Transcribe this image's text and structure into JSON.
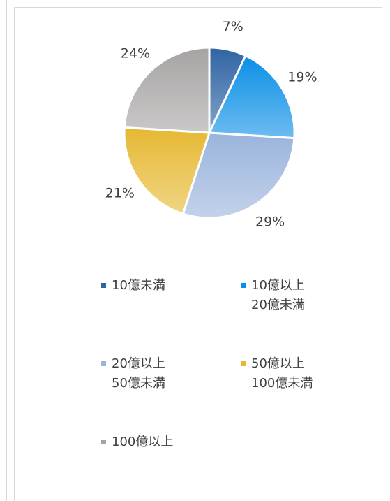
{
  "chart_data": {
    "type": "pie",
    "series": [
      {
        "name": "10億未満",
        "color": "#2f64a3",
        "values": [
          7
        ],
        "value_labels": [
          "7%"
        ]
      },
      {
        "name": "10億以上\n20億未満",
        "color": "#0b8fe6",
        "values": [
          19
        ],
        "value_labels": [
          "19%"
        ]
      },
      {
        "name": "20億以上\n50億未満",
        "color": "#9ab4dc",
        "values": [
          29
        ],
        "value_labels": [
          "29%"
        ]
      },
      {
        "name": "50億以上\n100億未満",
        "color": "#e6b832",
        "values": [
          21
        ],
        "value_labels": [
          "21%"
        ]
      },
      {
        "name": "100億以上",
        "color": "#a6a4a3",
        "values": [
          24
        ],
        "value_labels": [
          "24%"
        ]
      }
    ],
    "legend": "bottom"
  }
}
